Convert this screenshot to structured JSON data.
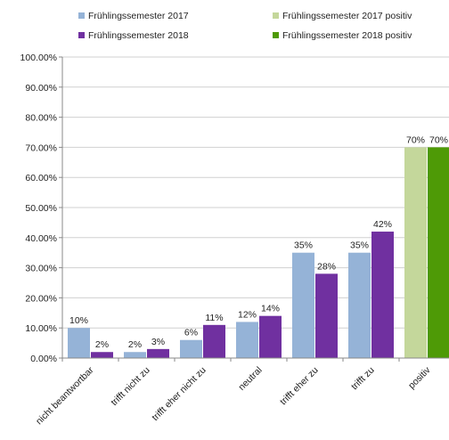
{
  "chart_data": {
    "type": "bar",
    "legend_position": "top",
    "grid": true,
    "ylim": [
      0,
      100
    ],
    "yticks": [
      "0.00%",
      "10.00%",
      "20.00%",
      "30.00%",
      "40.00%",
      "50.00%",
      "60.00%",
      "70.00%",
      "80.00%",
      "90.00%",
      "100.00%"
    ],
    "categories": [
      "nicht beantwortbar",
      "trifft nicht zu",
      "trifft eher nicht zu",
      "neutral",
      "trifft eher zu",
      "trifft zu",
      "positiv"
    ],
    "series": [
      {
        "name": "Frühlingssemester 2017",
        "color": "#95B3D7",
        "values": [
          10,
          2,
          6,
          12,
          35,
          35,
          null
        ],
        "labels": [
          "10%",
          "2%",
          "6%",
          "12%",
          "35%",
          "35%",
          ""
        ]
      },
      {
        "name": "Frühlingssemester 2018",
        "color": "#7030A0",
        "values": [
          2,
          3,
          11,
          14,
          28,
          42,
          null
        ],
        "labels": [
          "2%",
          "3%",
          "11%",
          "14%",
          "28%",
          "42%",
          ""
        ]
      },
      {
        "name": "Frühlingssemester 2017 positiv",
        "color": "#C4D79B",
        "values": [
          null,
          null,
          null,
          null,
          null,
          null,
          70
        ],
        "labels": [
          "",
          "",
          "",
          "",
          "",
          "",
          "70%"
        ]
      },
      {
        "name": "Frühlingssemester 2018 positiv",
        "color": "#4E9A06",
        "values": [
          null,
          null,
          null,
          null,
          null,
          null,
          70
        ],
        "labels": [
          "",
          "",
          "",
          "",
          "",
          "",
          "70%"
        ]
      }
    ]
  }
}
